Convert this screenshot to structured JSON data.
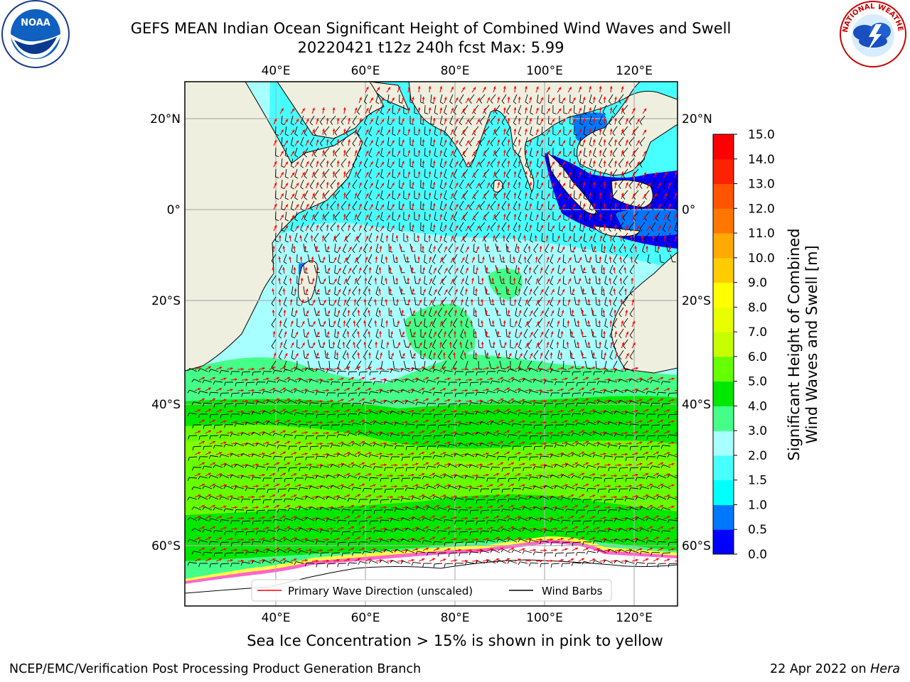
{
  "title": {
    "line1": "GEFS MEAN Indian Ocean Significant Height of Combined Wind Waves and Swell",
    "line2": "20220421 t12z 240h fcst   Max: 5.99"
  },
  "logos": {
    "noaa_text": "NOAA",
    "nws_text": "NATIONAL WEATHER SERVICE"
  },
  "axes": {
    "lon_ticks": [
      "40°E",
      "60°E",
      "80°E",
      "100°E",
      "120°E"
    ],
    "lon_values": [
      40,
      60,
      80,
      100,
      120
    ],
    "lat_ticks": [
      "20°N",
      "0°",
      "20°S",
      "40°S",
      "60°S"
    ],
    "lat_values": [
      20,
      0,
      -20,
      -40,
      -60
    ],
    "lon_range": [
      20,
      130
    ],
    "lat_range": [
      -75,
      28
    ],
    "grid": true
  },
  "colorbar": {
    "label_line1": "Significant Height of Combined",
    "label_line2": "Wind Waves and Swell [m]",
    "tick_labels": [
      "0.0",
      "0.5",
      "1.0",
      "1.5",
      "2.0",
      "3.0",
      "4.0",
      "5.0",
      "6.0",
      "7.0",
      "8.0",
      "9.0",
      "10.0",
      "11.0",
      "12.0",
      "13.0",
      "14.0",
      "15.0"
    ],
    "colors": [
      "#0000ff",
      "#0077ff",
      "#00ffff",
      "#48ffff",
      "#a8ffff",
      "#44ff88",
      "#00e800",
      "#66ff00",
      "#c8ff00",
      "#e8ff00",
      "#ffff00",
      "#ffcc00",
      "#ffaa00",
      "#ff7700",
      "#ff5500",
      "#ff2200",
      "#ff0000"
    ]
  },
  "legend": {
    "wave_dir_label": "Primary Wave Direction (unscaled)",
    "wind_barbs_label": "Wind Barbs",
    "wave_dir_color": "#ff0000",
    "wind_barbs_color": "#000000"
  },
  "colors": {
    "land": "#efefdf",
    "ice_white": "#ffffff",
    "gridline": "#b0b0b0"
  },
  "note": "Sea Ice Concentration > 15% is shown in pink to yellow",
  "footer": {
    "left": "NCEP/EMC/Verification Post Processing Product Generation Branch",
    "right_prefix": "22 Apr 2022 on ",
    "right_host": "Hera"
  }
}
